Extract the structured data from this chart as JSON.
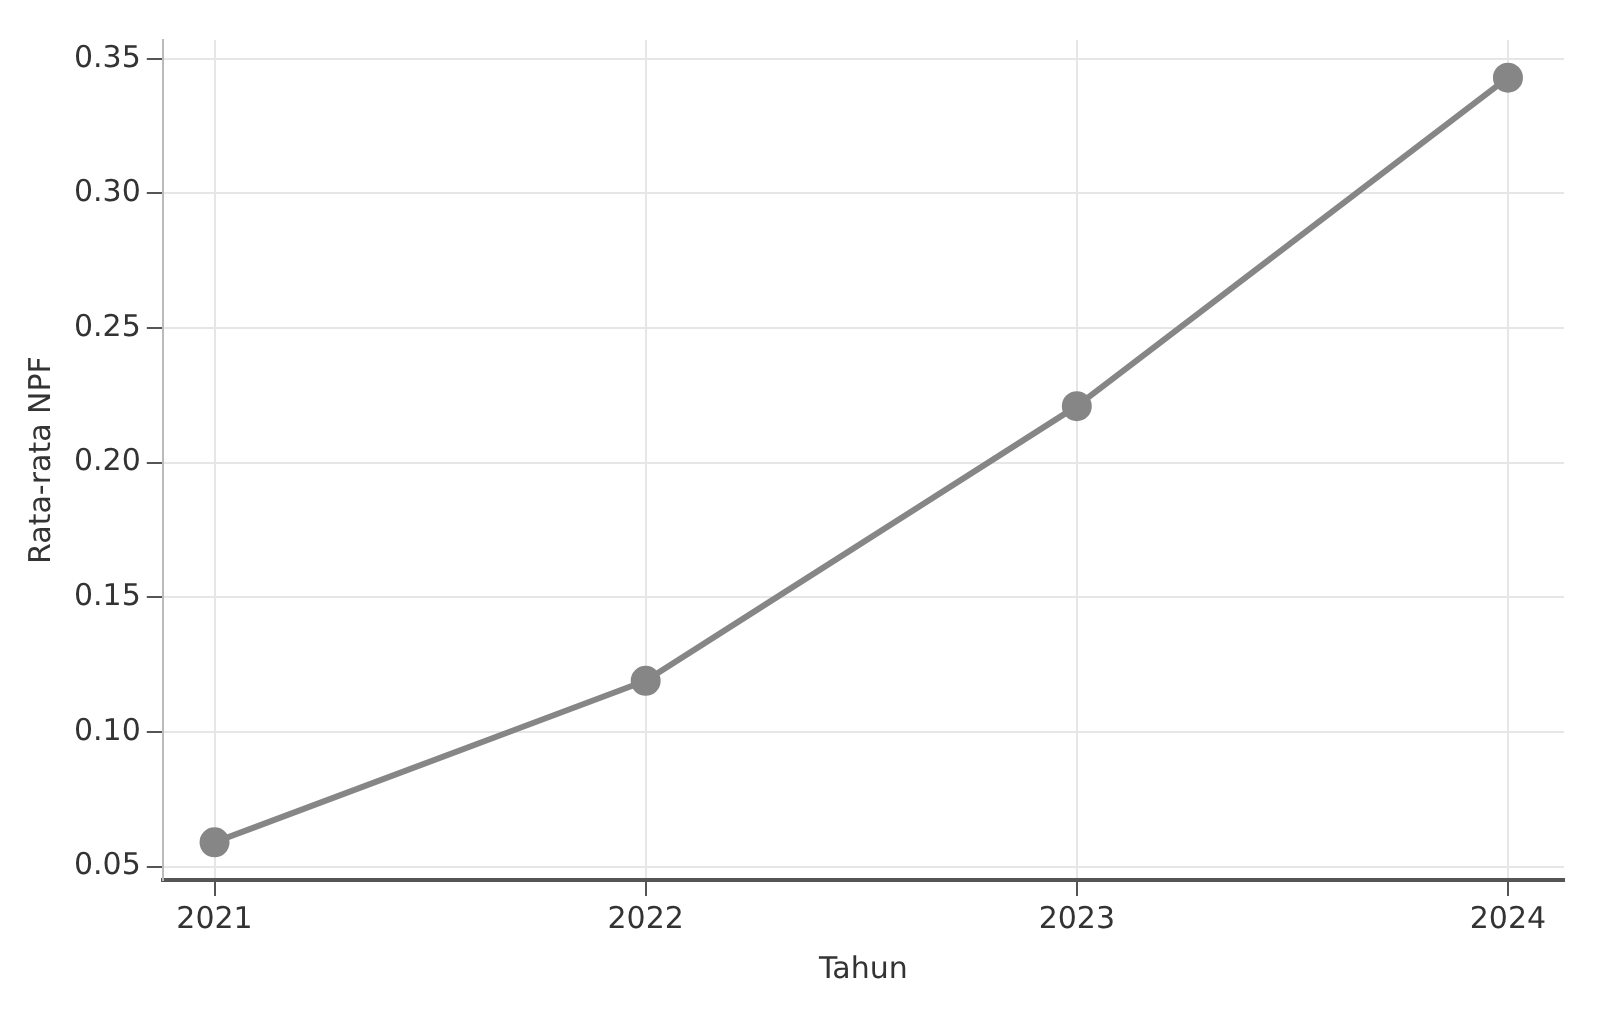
{
  "chart_data": {
    "type": "line",
    "xlabel": "Tahun",
    "ylabel": "Rata-rata NPF",
    "x": [
      2021,
      2022,
      2023,
      2024
    ],
    "series": [
      {
        "color": "#868686",
        "values": [
          0.059,
          0.119,
          0.221,
          0.343
        ]
      }
    ],
    "xlim": [
      2020.88,
      2024.13
    ],
    "xticks": [
      2021,
      2022,
      2023,
      2024
    ],
    "ylim": [
      0.045,
      0.357
    ],
    "yticks": [
      0.05,
      {
        "value": 0.1,
        "label": "0.10"
      },
      0.15,
      {
        "value": 0.2,
        "label": "0.20"
      },
      0.25,
      {
        "value": 0.3,
        "label": "0.30"
      },
      0.35
    ],
    "grid": true,
    "marker": "circle",
    "line_style": "solid"
  }
}
